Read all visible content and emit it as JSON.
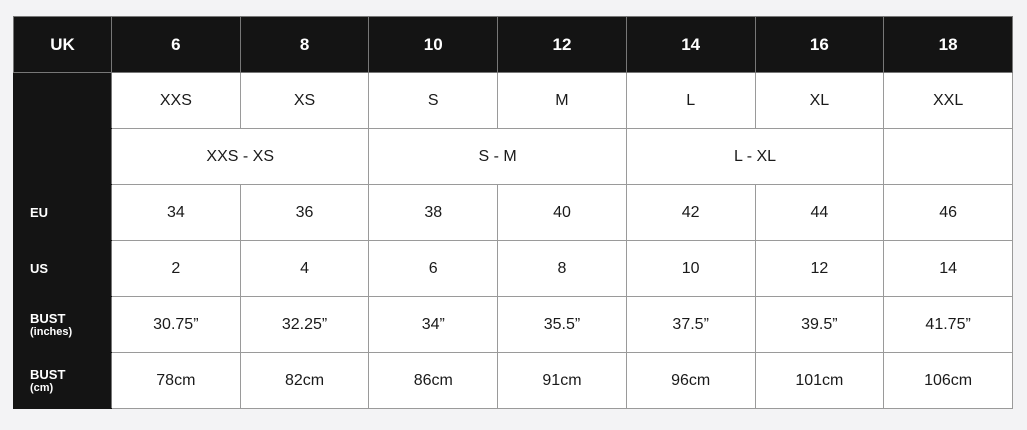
{
  "table": {
    "header": [
      "UK",
      "6",
      "8",
      "10",
      "12",
      "14",
      "16",
      "18"
    ],
    "rows": [
      {
        "cells": [
          "XXS",
          "XS",
          "S",
          "M",
          "L",
          "XL",
          "XXL"
        ]
      },
      {
        "cells": [
          "XXS - XS",
          "S - M",
          "L - XL"
        ]
      },
      {
        "label": {
          "main": "EU"
        },
        "cells": [
          "34",
          "36",
          "38",
          "40",
          "42",
          "44",
          "46"
        ]
      },
      {
        "label": {
          "main": "US"
        },
        "cells": [
          "2",
          "4",
          "6",
          "8",
          "10",
          "12",
          "14"
        ]
      },
      {
        "label": {
          "main": "BUST",
          "sub": "(inches)"
        },
        "cells": [
          "30.75”",
          "32.25”",
          "34”",
          "35.5”",
          "37.5”",
          "39.5”",
          "41.75”"
        ]
      },
      {
        "label": {
          "main": "BUST",
          "sub": "(cm)"
        },
        "cells": [
          "78cm",
          "82cm",
          "86cm",
          "91cm",
          "96cm",
          "101cm",
          "106cm"
        ]
      }
    ]
  }
}
